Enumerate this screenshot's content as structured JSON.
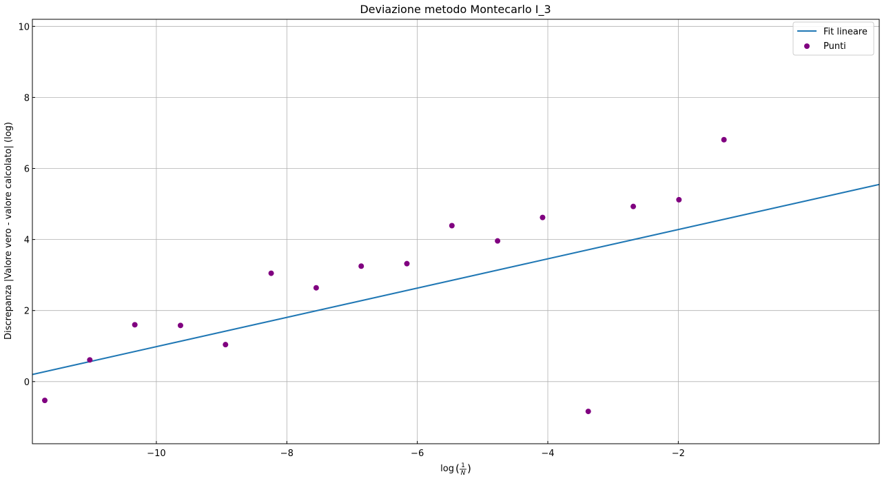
{
  "chart_data": {
    "type": "scatter",
    "title": "Deviazione metodo Montecarlo I_3",
    "xlabel": {
      "prefix": "log",
      "frac_numerator": "1",
      "frac_denominator": "N"
    },
    "ylabel": "Discrepanza |Valore vero - valore calcolato| (log)",
    "xlim": [
      -11.9,
      1.08
    ],
    "ylim": [
      -1.75,
      10.2
    ],
    "xticks": [
      -10,
      -8,
      -6,
      -4,
      -2
    ],
    "xtick_labels": [
      "−10",
      "−8",
      "−6",
      "−4",
      "−2"
    ],
    "yticks": [
      0,
      2,
      4,
      6,
      8,
      10
    ],
    "ytick_labels": [
      "0",
      "2",
      "4",
      "6",
      "8",
      "10"
    ],
    "grid": true,
    "legend_position": "top-right",
    "series": [
      {
        "name": "Fit lineare",
        "kind": "line",
        "color": "#1f77b4",
        "x": [
          -11.9,
          1.08
        ],
        "y": [
          0.2,
          5.55
        ]
      },
      {
        "name": "Punti",
        "kind": "scatter",
        "color": "#800080",
        "x": [
          -11.71,
          -11.02,
          -10.33,
          -9.63,
          -8.94,
          -8.24,
          -7.55,
          -6.86,
          -6.16,
          -5.47,
          -4.77,
          -4.08,
          -3.38,
          -2.69,
          -1.99,
          -1.3
        ],
        "y": [
          -0.53,
          0.61,
          1.6,
          1.58,
          1.04,
          3.05,
          2.64,
          3.25,
          3.32,
          4.39,
          3.96,
          4.62,
          -0.84,
          4.93,
          5.12,
          6.81
        ]
      }
    ]
  }
}
